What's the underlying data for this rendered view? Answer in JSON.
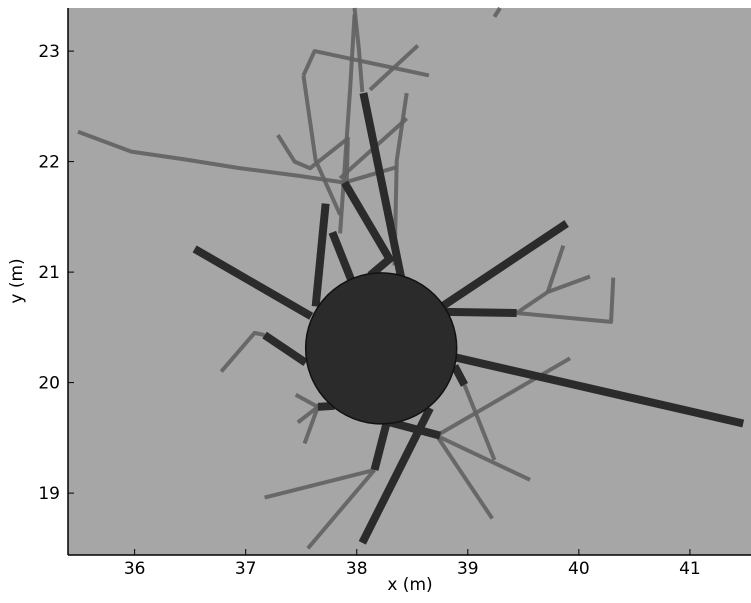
{
  "chart_data": {
    "type": "branches",
    "xlabel": "x (m)",
    "ylabel": "y (m)",
    "xlim": [
      35.4,
      41.55
    ],
    "ylim": [
      18.44,
      23.39
    ],
    "xticks": [
      36,
      37,
      38,
      39,
      40,
      41
    ],
    "yticks": [
      19,
      20,
      21,
      22,
      23
    ],
    "background": "#a6a6a6",
    "circle": {
      "x": 38.22,
      "y": 20.31,
      "r": 0.68,
      "color": "#2b2b2b"
    },
    "series": [
      {
        "color": "#626262",
        "segments": [
          {
            "x": [
              35.49,
              35.97,
              36.45,
              36.95,
              37.49,
              37.89,
              38.36
            ],
            "y": [
              22.27,
              22.09,
              22.02,
              21.94,
              21.87,
              21.81,
              21.95
            ]
          },
          {
            "x": [
              37.98,
              38.02,
              38.05
            ],
            "y": [
              23.39,
              23.01,
              22.63
            ]
          },
          {
            "x": [
              37.98,
              37.94,
              37.85
            ],
            "y": [
              23.33,
              22.65,
              21.35
            ]
          },
          {
            "x": [
              37.52,
              37.62,
              38.65
            ],
            "y": [
              22.78,
              23.0,
              22.78
            ]
          },
          {
            "x": [
              37.52,
              37.63,
              37.85
            ],
            "y": [
              22.78,
              22.01,
              21.52
            ]
          },
          {
            "x": [
              38.55,
              38.12
            ],
            "y": [
              23.05,
              22.65
            ]
          },
          {
            "x": [
              37.29,
              37.44,
              37.58,
              37.92,
              37.91
            ],
            "y": [
              22.24,
              22.0,
              21.94,
              22.21,
              21.81
            ]
          },
          {
            "x": [
              38.45,
              38.36,
              38.34
            ],
            "y": [
              22.62,
              22.01,
              21.06
            ]
          },
          {
            "x": [
              38.45,
              37.85
            ],
            "y": [
              22.39,
              21.85
            ]
          },
          {
            "x": [
              39.29,
              39.24
            ],
            "y": [
              23.39,
              23.31
            ]
          },
          {
            "x": [
              39.44,
              40.29,
              40.31
            ],
            "y": [
              20.63,
              20.55,
              20.95
            ]
          },
          {
            "x": [
              39.44,
              39.72,
              40.1
            ],
            "y": [
              20.63,
              20.82,
              20.96
            ]
          },
          {
            "x": [
              39.72,
              39.86
            ],
            "y": [
              20.82,
              21.24
            ]
          },
          {
            "x": [
              38.72,
              39.92
            ],
            "y": [
              19.52,
              20.22
            ]
          },
          {
            "x": [
              38.72,
              39.22
            ],
            "y": [
              19.52,
              18.77
            ]
          },
          {
            "x": [
              38.72,
              39.56
            ],
            "y": [
              19.52,
              19.12
            ]
          },
          {
            "x": [
              38.97,
              39.24
            ],
            "y": [
              19.98,
              19.3
            ]
          },
          {
            "x": [
              38.16,
              37.56
            ],
            "y": [
              19.21,
              18.5
            ]
          },
          {
            "x": [
              38.16,
              37.17
            ],
            "y": [
              19.21,
              18.96
            ]
          },
          {
            "x": [
              37.17,
              37.08,
              36.78
            ],
            "y": [
              20.43,
              20.45,
              20.1
            ]
          },
          {
            "x": [
              37.65,
              37.45
            ],
            "y": [
              19.78,
              19.89
            ]
          },
          {
            "x": [
              37.65,
              37.53
            ],
            "y": [
              19.78,
              19.45
            ]
          },
          {
            "x": [
              37.65,
              37.47
            ],
            "y": [
              19.78,
              19.64
            ]
          }
        ]
      },
      {
        "color": "#2b2b2b",
        "segments": [
          {
            "x": [
              36.54,
              37.59
            ],
            "y": [
              21.21,
              20.6
            ]
          },
          {
            "x": [
              37.72,
              37.63
            ],
            "y": [
              21.62,
              20.69
            ]
          },
          {
            "x": [
              37.78,
              37.95
            ],
            "y": [
              21.36,
              20.93
            ]
          },
          {
            "x": [
              38.06,
              38.4
            ],
            "y": [
              22.62,
              20.95
            ]
          },
          {
            "x": [
              37.89,
              38.3
            ],
            "y": [
              21.81,
              21.11
            ]
          },
          {
            "x": [
              38.12,
              38.32
            ],
            "y": [
              20.97,
              21.14
            ]
          },
          {
            "x": [
              39.89,
              38.77
            ],
            "y": [
              21.44,
              20.69
            ]
          },
          {
            "x": [
              38.79,
              39.44
            ],
            "y": [
              20.64,
              20.63
            ]
          },
          {
            "x": [
              38.88,
              41.48
            ],
            "y": [
              20.23,
              19.63
            ]
          },
          {
            "x": [
              38.88,
              38.97
            ],
            "y": [
              20.15,
              19.98
            ]
          },
          {
            "x": [
              38.66,
              38.05
            ],
            "y": [
              19.77,
              18.55
            ]
          },
          {
            "x": [
              38.27,
              38.16
            ],
            "y": [
              19.64,
              19.21
            ]
          },
          {
            "x": [
              37.17,
              37.54
            ],
            "y": [
              20.43,
              20.18
            ]
          },
          {
            "x": [
              38.3,
              38.75
            ],
            "y": [
              19.64,
              19.52
            ]
          },
          {
            "x": [
              37.65,
              37.8
            ],
            "y": [
              19.78,
              19.79
            ]
          }
        ]
      }
    ]
  }
}
